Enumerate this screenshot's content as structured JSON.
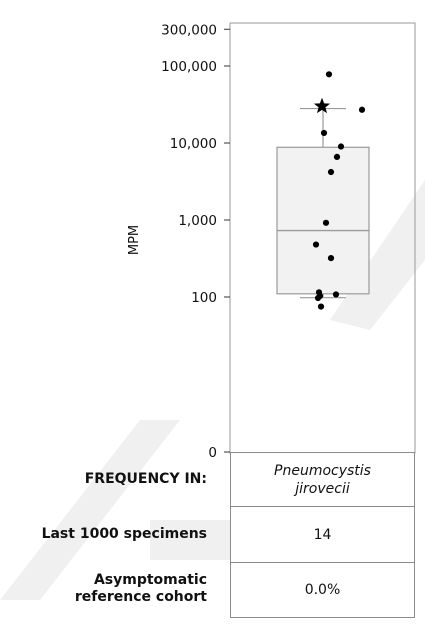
{
  "chart_data": {
    "type": "box",
    "ylabel": "MPM",
    "yscale": "log",
    "yticks": [
      "300,000",
      "100,000",
      "10,000",
      "1,000",
      "100",
      "0"
    ],
    "box": {
      "q1": 110,
      "median": 730,
      "q3": 8800,
      "whisker_low": 98,
      "whisker_high": 28000
    },
    "points": [
      78000,
      27000,
      13500,
      9000,
      6600,
      4200,
      920,
      480,
      320,
      115,
      108,
      103,
      97,
      75
    ],
    "highlight": {
      "value": 30000,
      "marker": "star"
    }
  },
  "table": {
    "header_label": "FREQUENCY IN:",
    "organism_line1": "Pneumocystis",
    "organism_line2": "jirovecii",
    "row1_label": "Last 1000 specimens",
    "row1_value": "14",
    "row2_label_line1": "Asymptomatic",
    "row2_label_line2": "reference cohort",
    "row2_value": "0.0%"
  }
}
